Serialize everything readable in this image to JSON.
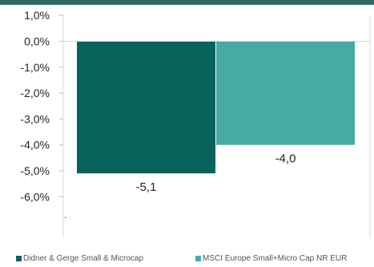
{
  "chart_data": {
    "type": "bar",
    "categories": [
      "Didner & Gerge Small & Microcap",
      "MSCI Europe Small+Micro Cap NR EUR"
    ],
    "values": [
      -5.1,
      -4.0
    ],
    "data_labels": [
      "-5,1",
      "-4,0"
    ],
    "colors": [
      "#08645a",
      "#48aaa4"
    ],
    "ylim": [
      -7.0,
      1.0
    ],
    "y_ticks": [
      1.0,
      0.0,
      -1.0,
      -2.0,
      -3.0,
      -4.0,
      -5.0,
      -6.0
    ],
    "y_tick_labels": [
      "1,0%",
      "0,0%",
      "-1,0%",
      "-2,0%",
      "-3,0%",
      "-4,0%",
      "-5,0%",
      "-6,0%"
    ],
    "grid": false,
    "legend": {
      "position": "bottom",
      "entries": [
        {
          "name": "Didner & Gerge Small & Microcap",
          "color": "#08645a"
        },
        {
          "name": "MSCI Europe Small+Micro Cap NR EUR",
          "color": "#48aaa4"
        }
      ]
    },
    "annotation": "."
  }
}
